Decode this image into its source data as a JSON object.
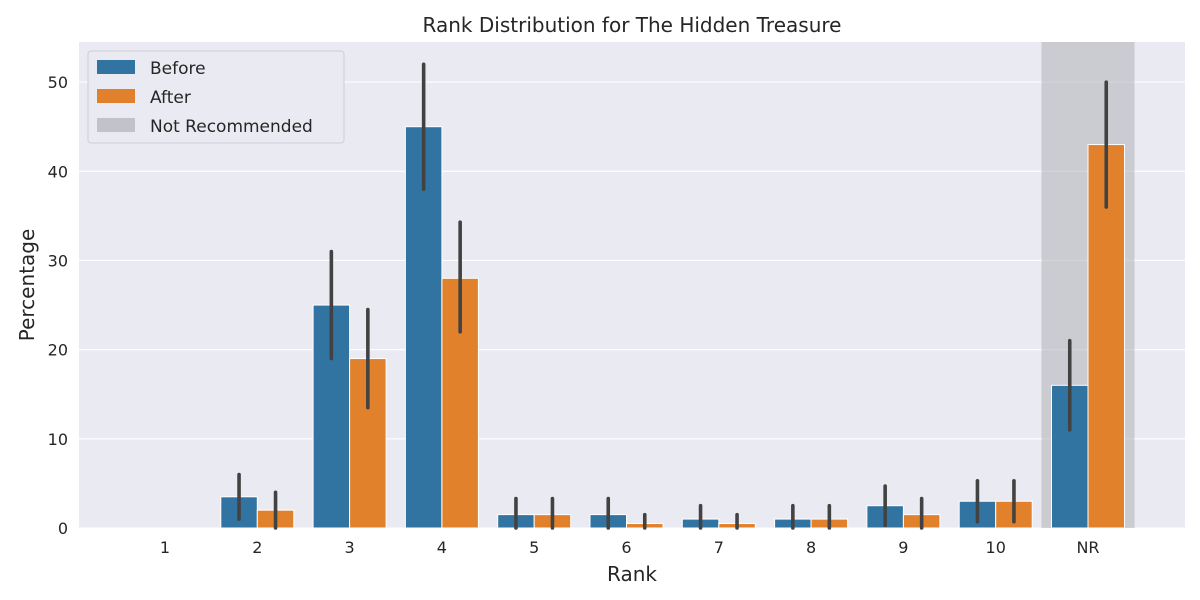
{
  "chart_data": {
    "type": "bar",
    "title": "Rank Distribution for The Hidden Treasure",
    "xlabel": "Rank",
    "ylabel": "Percentage",
    "categories": [
      "1",
      "2",
      "3",
      "4",
      "5",
      "6",
      "7",
      "8",
      "9",
      "10",
      "NR"
    ],
    "ylim": [
      0,
      54.5
    ],
    "yticks": [
      0,
      10,
      20,
      30,
      40,
      50
    ],
    "grid": true,
    "legend_position": "top-left",
    "series": [
      {
        "name": "Before",
        "color": "#3274a1",
        "values": [
          0,
          3.5,
          25,
          45,
          1.5,
          1.5,
          1,
          1,
          2.5,
          3,
          16
        ],
        "error_low": [
          0,
          1,
          19,
          38,
          0,
          0,
          0,
          0,
          0.3,
          0.7,
          11
        ],
        "error_high": [
          0,
          6,
          31,
          52,
          3.3,
          3.3,
          2.5,
          2.5,
          4.7,
          5.3,
          21
        ]
      },
      {
        "name": "After",
        "color": "#e1812c",
        "values": [
          0,
          2,
          19,
          28,
          1.5,
          0.5,
          0.5,
          1,
          1.5,
          3,
          43
        ],
        "error_low": [
          0,
          0,
          13.5,
          22,
          0,
          0,
          0,
          0,
          0,
          0.7,
          36
        ],
        "error_high": [
          0,
          4,
          24.5,
          34.3,
          3.3,
          1.5,
          1.5,
          2.5,
          3.3,
          5.3,
          50
        ]
      }
    ],
    "highlight": {
      "label": "Not Recommended",
      "category": "NR",
      "color": "#b0b0b8"
    }
  }
}
